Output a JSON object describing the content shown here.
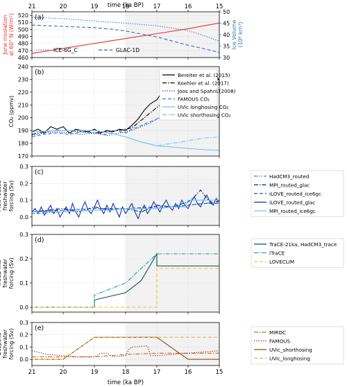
{
  "figure": {
    "top_axis_label": "time (ka BP)",
    "bottom_axis_label": "time (ka BP)",
    "x_ticks": [
      21,
      20,
      19,
      18,
      17,
      16,
      15
    ],
    "x_range": [
      21,
      15
    ],
    "shaded_interval": [
      18,
      15
    ]
  },
  "chart_data": [
    {
      "panel": "a",
      "type": "line",
      "panel_label": "(a)",
      "ylabel": "June insolation\nat 60° N (W/m²)",
      "ylim": [
        460,
        525
      ],
      "yticks": [
        460,
        470,
        480,
        490,
        500,
        510,
        520
      ],
      "ylabel_right": "Ice Volume\n(10⁶ km³)",
      "ylim_right": [
        30,
        50
      ],
      "yticks_right": [
        30,
        35,
        40,
        45,
        50
      ],
      "legend_position": "lower-left",
      "series": [
        {
          "name": "",
          "axis": "left",
          "color": "#e8312f",
          "style": "solid",
          "x": [
            21,
            20,
            19,
            18,
            17,
            16,
            15
          ],
          "y": [
            466,
            473,
            480,
            487,
            494,
            501,
            509
          ]
        },
        {
          "name": "ICE-6G_C",
          "axis": "right",
          "color": "#2f6fb0",
          "style": "dotted",
          "x": [
            21,
            20,
            19,
            18,
            17,
            16,
            15.5,
            15
          ],
          "y": [
            47.6,
            47.0,
            46.0,
            45.0,
            43.9,
            41.8,
            39.6,
            37.2
          ]
        },
        {
          "name": "GLAC-1D",
          "axis": "right",
          "color": "#2f6fb0",
          "style": "dashed",
          "x": [
            21,
            20,
            19,
            18.5,
            18,
            17.5,
            17,
            16.5,
            16,
            15.5,
            15
          ],
          "y": [
            44.2,
            43.6,
            43.1,
            42.5,
            41.6,
            40.3,
            39.0,
            37.2,
            35.4,
            33.9,
            32.2
          ]
        }
      ]
    },
    {
      "panel": "b",
      "type": "line",
      "panel_label": "(b)",
      "ylabel": "CO₂ (ppmv)",
      "ylim": [
        170,
        240
      ],
      "yticks": [
        170,
        180,
        190,
        200,
        210,
        220,
        230,
        240
      ],
      "legend_position": "upper-right",
      "series": [
        {
          "name": "Bereiter et al. (2015)",
          "color": "#000000",
          "style": "solid",
          "x": [
            21,
            20.8,
            20.6,
            20.4,
            20.2,
            20,
            19.8,
            19.6,
            19.4,
            19.2,
            19,
            18.8,
            18.6,
            18.4,
            18.2,
            18,
            17.8,
            17.6,
            17.4,
            17.2,
            17,
            16.8,
            16.6,
            16.4,
            16.2,
            16,
            15.8,
            15.6,
            15.4,
            15.2,
            15.1,
            15
          ],
          "y": [
            189,
            191,
            188,
            193,
            191,
            193,
            188,
            191,
            190,
            189,
            191,
            188,
            190,
            189,
            191,
            190,
            194,
            199,
            206,
            211,
            214,
            221,
            218,
            226,
            220,
            224,
            228,
            225,
            231,
            227,
            233,
            229
          ]
        },
        {
          "name": "Koehler et al. (2017)",
          "color": "#000000",
          "style": "dashdot",
          "x": [
            21,
            20.6,
            20.2,
            19.8,
            19.4,
            19,
            18.6,
            18.2,
            18,
            17.8,
            17.6,
            17.4,
            17.2,
            17,
            16.8,
            16.6,
            16.4,
            16.2,
            16,
            15.8,
            15.6,
            15.4,
            15.2,
            15
          ],
          "y": [
            187,
            189,
            190,
            190,
            189,
            188,
            189,
            190,
            191,
            192,
            196,
            200,
            204,
            208,
            212,
            216,
            218,
            219,
            221,
            223,
            225,
            227,
            229,
            230
          ]
        },
        {
          "name": "Joos and Spahni (2008)",
          "color": "#1f2d9e",
          "style": "dotted",
          "x": [
            21,
            20.6,
            20.2,
            19.8,
            19.4,
            19,
            18.6,
            18.2,
            18,
            17.8,
            17.6,
            17.4,
            17.2,
            17,
            16.8,
            16.6,
            16.4,
            16.2,
            16,
            15.8,
            15.6,
            15.4,
            15.2,
            15
          ],
          "y": [
            186,
            188,
            189,
            188,
            187,
            188,
            186,
            188,
            189,
            190,
            192,
            194,
            196,
            199,
            201,
            204,
            207,
            209,
            212,
            214,
            216,
            218,
            220,
            222
          ]
        },
        {
          "name": "FAMOUS CO₂",
          "color": "#2f80d0",
          "style": "dashed",
          "x": [
            21,
            20.6,
            20.2,
            19.8,
            19.4,
            19,
            18.6,
            18.3,
            18,
            17.8,
            17.6,
            17.4,
            17.2,
            17,
            16.8,
            16.6,
            16.4,
            16.2,
            16,
            15.8,
            15.6,
            15.4,
            15.2,
            15
          ],
          "y": [
            185,
            187,
            188,
            187,
            189,
            188,
            187,
            190,
            188,
            191,
            193,
            195,
            197,
            199,
            201,
            204,
            206,
            209,
            212,
            214,
            216,
            218,
            219,
            220
          ]
        },
        {
          "name": "UVic longhosing CO₂",
          "color": "#72c4ee",
          "style": "solid",
          "x": [
            21,
            20,
            19,
            18.5,
            18,
            17.5,
            17,
            16.5,
            16,
            15.5,
            15
          ],
          "y": [
            189,
            190,
            190,
            188,
            185,
            181,
            178,
            177,
            176,
            175,
            174.5
          ]
        },
        {
          "name": "UVic shorthosing CO₂",
          "color": "#72c4ee",
          "style": "dashdot",
          "x": [
            21,
            20,
            19,
            18.5,
            18,
            17.5,
            17,
            16.5,
            16,
            15.5,
            15
          ],
          "y": [
            189,
            190,
            190,
            188,
            185,
            181,
            178,
            180,
            182,
            184,
            185
          ]
        }
      ]
    },
    {
      "panel": "c",
      "type": "line",
      "panel_label": "(c)",
      "ylabel": "Melt-routed\nfreshwater\nforcing (Sv)",
      "ylim": [
        -0.05,
        0.3
      ],
      "yticks": [
        0.0,
        0.1,
        0.2,
        0.3
      ],
      "legend_position": "right-outside",
      "series": [
        {
          "name": "HadCM3_routed",
          "color": "#2f80d0",
          "style": "dashdotdot",
          "x": [
            21,
            20,
            19,
            18,
            17,
            16.5,
            16,
            15.5,
            15
          ],
          "y": [
            0.02,
            0.03,
            0.04,
            0.05,
            0.05,
            0.06,
            0.07,
            0.08,
            0.09
          ]
        },
        {
          "name": "MPI_routed_glac",
          "color": "#0a1a70",
          "style": "dashdot",
          "x": [
            21,
            20.5,
            20,
            19.5,
            19,
            18.5,
            18,
            17.5,
            17,
            16.5,
            16,
            15.8,
            15.6,
            15.4,
            15.2,
            15
          ],
          "y": [
            0.03,
            0.04,
            0.05,
            0.03,
            0.06,
            0.04,
            0.05,
            0.03,
            0.07,
            0.06,
            0.09,
            0.12,
            0.16,
            0.11,
            0.08,
            0.1
          ]
        },
        {
          "name": "iLOVE_routed_ice6gc",
          "color": "#2050b0",
          "style": "dashed",
          "x": [
            21,
            20,
            19,
            18,
            17,
            16.5,
            16,
            15.5,
            15
          ],
          "y": [
            0.03,
            0.04,
            0.05,
            0.05,
            0.06,
            0.06,
            0.07,
            0.08,
            0.08
          ]
        },
        {
          "name": "iLOVE_routed_glac",
          "color": "#1a2bb5",
          "style": "solid",
          "x": [
            21,
            20.9,
            20.8,
            20.7,
            20.6,
            20.5,
            20.4,
            20.3,
            20.2,
            20.1,
            20,
            19.9,
            19.8,
            19.7,
            19.6,
            19.5,
            19.4,
            19.3,
            19.2,
            19.1,
            19,
            18.9,
            18.8,
            18.7,
            18.6,
            18.5,
            18.4,
            18.3,
            18.2,
            18.1,
            18,
            17.9,
            17.8,
            17.7,
            17.6,
            17.5,
            17.4,
            17.3,
            17.2,
            17.1,
            17,
            16.9,
            16.8,
            16.7,
            16.6,
            16.5,
            16.4,
            16.3,
            16.2,
            16.1,
            16,
            15.9,
            15.8,
            15.7,
            15.6,
            15.5,
            15.4,
            15.3,
            15.2,
            15.1,
            15
          ],
          "y": [
            0.03,
            0.05,
            0.02,
            0.06,
            0.01,
            0.04,
            0.07,
            0.02,
            0.05,
            0.0,
            0.03,
            0.06,
            0.02,
            0.08,
            0.03,
            0.0,
            0.05,
            0.09,
            0.04,
            0.02,
            0.06,
            0.1,
            0.05,
            0.02,
            0.07,
            0.03,
            0.08,
            0.04,
            0.0,
            0.06,
            0.02,
            0.05,
            0.08,
            0.03,
            -0.01,
            0.04,
            0.07,
            0.02,
            0.05,
            0.09,
            0.06,
            0.03,
            0.07,
            0.1,
            0.06,
            0.04,
            0.08,
            0.05,
            0.1,
            0.07,
            0.05,
            0.09,
            0.12,
            0.08,
            0.06,
            0.1,
            0.13,
            0.09,
            0.07,
            0.11,
            0.09
          ]
        },
        {
          "name": "MPI_routed_ice6gc",
          "color": "#5fd0f0",
          "style": "solid",
          "x": [
            21,
            20,
            19,
            18.5,
            18,
            17.5,
            17,
            16.5,
            16.1,
            16,
            15.5,
            15
          ],
          "y": [
            0.03,
            0.03,
            0.04,
            0.04,
            0.05,
            0.05,
            0.05,
            0.06,
            0.06,
            0.1,
            0.1,
            0.1
          ]
        }
      ]
    },
    {
      "panel": "d",
      "type": "line",
      "panel_label": "(d)",
      "ylabel": "TraCE-like\nfreshwater\nforcing (Sv)",
      "ylim": [
        -0.02,
        0.3
      ],
      "yticks": [
        0.0,
        0.1,
        0.2,
        0.3
      ],
      "legend_position": "right-outside",
      "series": [
        {
          "name": "TraCE-21ka, HadCM3_trace",
          "color": "#0d4d4d",
          "style": "solid",
          "x": [
            21,
            19,
            19,
            18,
            17.5,
            17,
            17,
            15
          ],
          "y": [
            0.0,
            0.0,
            0.03,
            0.06,
            0.11,
            0.22,
            0.17,
            0.17
          ]
        },
        {
          "name": "iTraCE",
          "color": "#1a9a9a",
          "style": "dashdot",
          "x": [
            21,
            19,
            19,
            18,
            17,
            15
          ],
          "y": [
            0.0,
            0.0,
            0.05,
            0.1,
            0.22,
            0.22
          ]
        },
        {
          "name": "LOVECLIM",
          "color": "#f2c31d",
          "style": "dashed",
          "x": [
            21,
            17,
            17,
            15
          ],
          "y": [
            0.0,
            0.0,
            0.16,
            0.16
          ]
        }
      ]
    },
    {
      "panel": "e",
      "type": "line",
      "panel_label": "(e)",
      "ylabel": "Bespoke\nfreshwater\nforcing (Sv)",
      "ylim": [
        -0.05,
        0.3
      ],
      "yticks": [
        0.0,
        0.1,
        0.2,
        0.3
      ],
      "legend_position": "right-outside",
      "series": [
        {
          "name": "MIROC",
          "color": "#c66a0e",
          "style": "dashdot",
          "x": [
            21,
            20,
            19,
            18,
            17,
            16.5,
            16,
            15
          ],
          "y": [
            0.02,
            0.02,
            0.02,
            0.04,
            0.05,
            0.05,
            0.05,
            0.05
          ]
        },
        {
          "name": "FAMOUS",
          "color": "#9b1b1b",
          "style": "dotted",
          "x": [
            21,
            20.5,
            20,
            19.5,
            19,
            18.8,
            18.6,
            18.4,
            18,
            17.9,
            17.8,
            17.3,
            17.2,
            17,
            16.5,
            16,
            15.5,
            15
          ],
          "y": [
            0.07,
            0.04,
            0.03,
            0.02,
            0.02,
            0.05,
            0.05,
            0.02,
            0.03,
            0.08,
            0.1,
            0.11,
            0.03,
            0.03,
            0.04,
            0.05,
            0.06,
            0.07
          ]
        },
        {
          "name": "UVic_shorthosing",
          "color": "#8a4a0c",
          "style": "solid",
          "x": [
            21,
            20,
            19,
            17,
            16,
            15
          ],
          "y": [
            0.0,
            0.0,
            0.18,
            0.18,
            0.0,
            0.0
          ]
        },
        {
          "name": "UVic_longhosing",
          "color": "#e2b55a",
          "style": "dashed",
          "x": [
            21,
            20,
            19,
            15
          ],
          "y": [
            0.0,
            0.0,
            0.18,
            0.18
          ]
        }
      ]
    }
  ]
}
